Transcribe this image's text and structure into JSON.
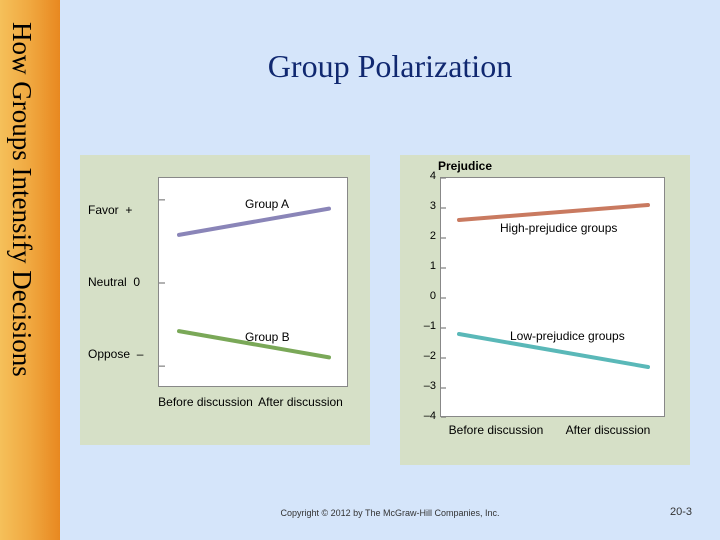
{
  "sidebar_text": "How Groups Intensify Decisions",
  "title": "Group Polarization",
  "chart_left": {
    "y_labels": [
      {
        "text": "Favor",
        "sign": "+"
      },
      {
        "text": "Neutral",
        "sign": "0"
      },
      {
        "text": "Oppose",
        "sign": "–"
      }
    ],
    "x_labels": [
      "Before discussion",
      "After discussion"
    ],
    "series": [
      {
        "name": "Group A",
        "color": "#8a85b8",
        "y1": 0.55,
        "y2": 0.85
      },
      {
        "name": "Group B",
        "color": "#7aa858",
        "y1": -0.55,
        "y2": -0.85
      }
    ],
    "plot_bg": "#ffffff",
    "panel_bg": "#d6e0c7",
    "line_width": 4
  },
  "chart_right": {
    "title": "Prejudice",
    "y_ticks": [
      "4",
      "3",
      "2",
      "1",
      "0",
      "–1",
      "–2",
      "–3",
      "–4"
    ],
    "y_min": -4,
    "y_max": 4,
    "x_labels": [
      "Before discussion",
      "After discussion"
    ],
    "series": [
      {
        "name": "High-prejudice groups",
        "color": "#c97a60",
        "y1": 2.6,
        "y2": 3.1
      },
      {
        "name": "Low-prejudice groups",
        "color": "#5ab8b8",
        "y1": -1.2,
        "y2": -2.3
      }
    ],
    "plot_bg": "#ffffff",
    "panel_bg": "#d6e0c7",
    "line_width": 4
  },
  "copyright": "Copyright © 2012 by The McGraw-Hill Companies, Inc.",
  "slide_number": "20-3"
}
